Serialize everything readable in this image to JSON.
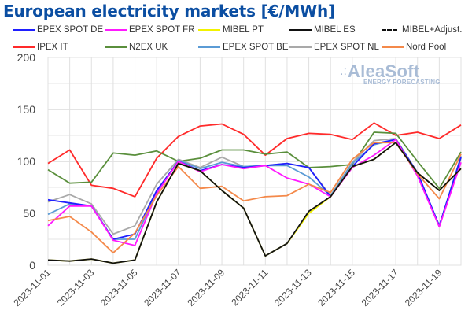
{
  "chart_data": {
    "type": "line",
    "title": "European electricity markets [€/MWh]",
    "xlabel": "",
    "ylabel": "",
    "ylim": [
      0,
      200
    ],
    "yticks": [
      0,
      50,
      100,
      150,
      200
    ],
    "grid": true,
    "legend_position": "top",
    "x": [
      "2023-11-01",
      "2023-11-02",
      "2023-11-03",
      "2023-11-04",
      "2023-11-05",
      "2023-11-06",
      "2023-11-07",
      "2023-11-08",
      "2023-11-09",
      "2023-11-10",
      "2023-11-11",
      "2023-11-12",
      "2023-11-13",
      "2023-11-14",
      "2023-11-15",
      "2023-11-16",
      "2023-11-17",
      "2023-11-18",
      "2023-11-19",
      "2023-11-20"
    ],
    "xtick_labels": [
      "2023-11-01",
      "2023-11-03",
      "2023-11-05",
      "2023-11-07",
      "2023-11-09",
      "2023-11-11",
      "2023-11-13",
      "2023-11-15",
      "2023-11-17",
      "2023-11-19"
    ],
    "series": [
      {
        "name": "IPEX IT",
        "color": "#ff2a2a",
        "dashed": false,
        "values": [
          98,
          111,
          77,
          74,
          66,
          103,
          124,
          134,
          136,
          126,
          106,
          122,
          127,
          126,
          121,
          137,
          125,
          128,
          122,
          135
        ]
      },
      {
        "name": "N2EX UK",
        "color": "#5a8f3c",
        "dashed": false,
        "values": [
          92,
          79,
          80,
          108,
          106,
          110,
          100,
          103,
          111,
          111,
          107,
          109,
          94,
          95,
          97,
          128,
          127,
          100,
          74,
          109
        ]
      },
      {
        "name": "EPEX SPOT NL",
        "color": "#a9a9a9",
        "dashed": false,
        "values": [
          61,
          68,
          59,
          30,
          38,
          78,
          102,
          94,
          104,
          95,
          96,
          98,
          94,
          67,
          99,
          120,
          122,
          89,
          37,
          103
        ]
      },
      {
        "name": "EPEX SPOT BE",
        "color": "#5b9bd5",
        "dashed": false,
        "values": [
          49,
          59,
          57,
          25,
          25,
          70,
          101,
          93,
          99,
          95,
          96,
          96,
          85,
          67,
          98,
          116,
          121,
          89,
          38,
          105
        ]
      },
      {
        "name": "EPEX SPOT DE",
        "color": "#1f1fff",
        "dashed": false,
        "values": [
          63,
          60,
          57,
          25,
          30,
          72,
          100,
          91,
          97,
          94,
          96,
          98,
          94,
          66,
          95,
          117,
          121,
          89,
          38,
          104
        ]
      },
      {
        "name": "EPEX SPOT FR",
        "color": "#ff19ff",
        "dashed": false,
        "values": [
          38,
          57,
          57,
          24,
          19,
          69,
          100,
          90,
          97,
          93,
          96,
          84,
          78,
          66,
          94,
          106,
          121,
          86,
          37,
          99
        ]
      },
      {
        "name": "Nord Pool",
        "color": "#f4894a",
        "dashed": false,
        "values": [
          43,
          47,
          32,
          12,
          31,
          67,
          95,
          74,
          76,
          62,
          66,
          67,
          78,
          70,
          102,
          118,
          118,
          88,
          64,
          107
        ]
      },
      {
        "name": "MIBEL PT",
        "color": "#f2f200",
        "dashed": false,
        "values": [
          5,
          4,
          6,
          2,
          5,
          61,
          98,
          91,
          72,
          55,
          9,
          21,
          50,
          66,
          95,
          102,
          118,
          89,
          72,
          93
        ]
      },
      {
        "name": "MIBEL ES",
        "color": "#111111",
        "dashed": false,
        "values": [
          5,
          4,
          6,
          2,
          5,
          61,
          98,
          91,
          72,
          55,
          9,
          21,
          52,
          66,
          95,
          102,
          118,
          89,
          72,
          93
        ]
      }
    ]
  },
  "legend": [
    {
      "label": "EPEX SPOT DE",
      "color": "#1f1fff",
      "dashed": false
    },
    {
      "label": "EPEX SPOT FR",
      "color": "#ff19ff",
      "dashed": false
    },
    {
      "label": "MIBEL PT",
      "color": "#f2f200",
      "dashed": false
    },
    {
      "label": "MIBEL ES",
      "color": "#111111",
      "dashed": false
    },
    {
      "label": "MIBEL+Adjust.",
      "color": "#111111",
      "dashed": true
    },
    {
      "label": "IPEX IT",
      "color": "#ff2a2a",
      "dashed": false
    },
    {
      "label": "N2EX UK",
      "color": "#5a8f3c",
      "dashed": false
    },
    {
      "label": "EPEX SPOT BE",
      "color": "#5b9bd5",
      "dashed": false
    },
    {
      "label": "EPEX SPOT NL",
      "color": "#a9a9a9",
      "dashed": false
    },
    {
      "label": "Nord Pool",
      "color": "#f4894a",
      "dashed": false
    }
  ],
  "logo": {
    "name": "AleaSoft",
    "dots": ".:",
    "tagline": "ENERGY FORECASTING"
  }
}
